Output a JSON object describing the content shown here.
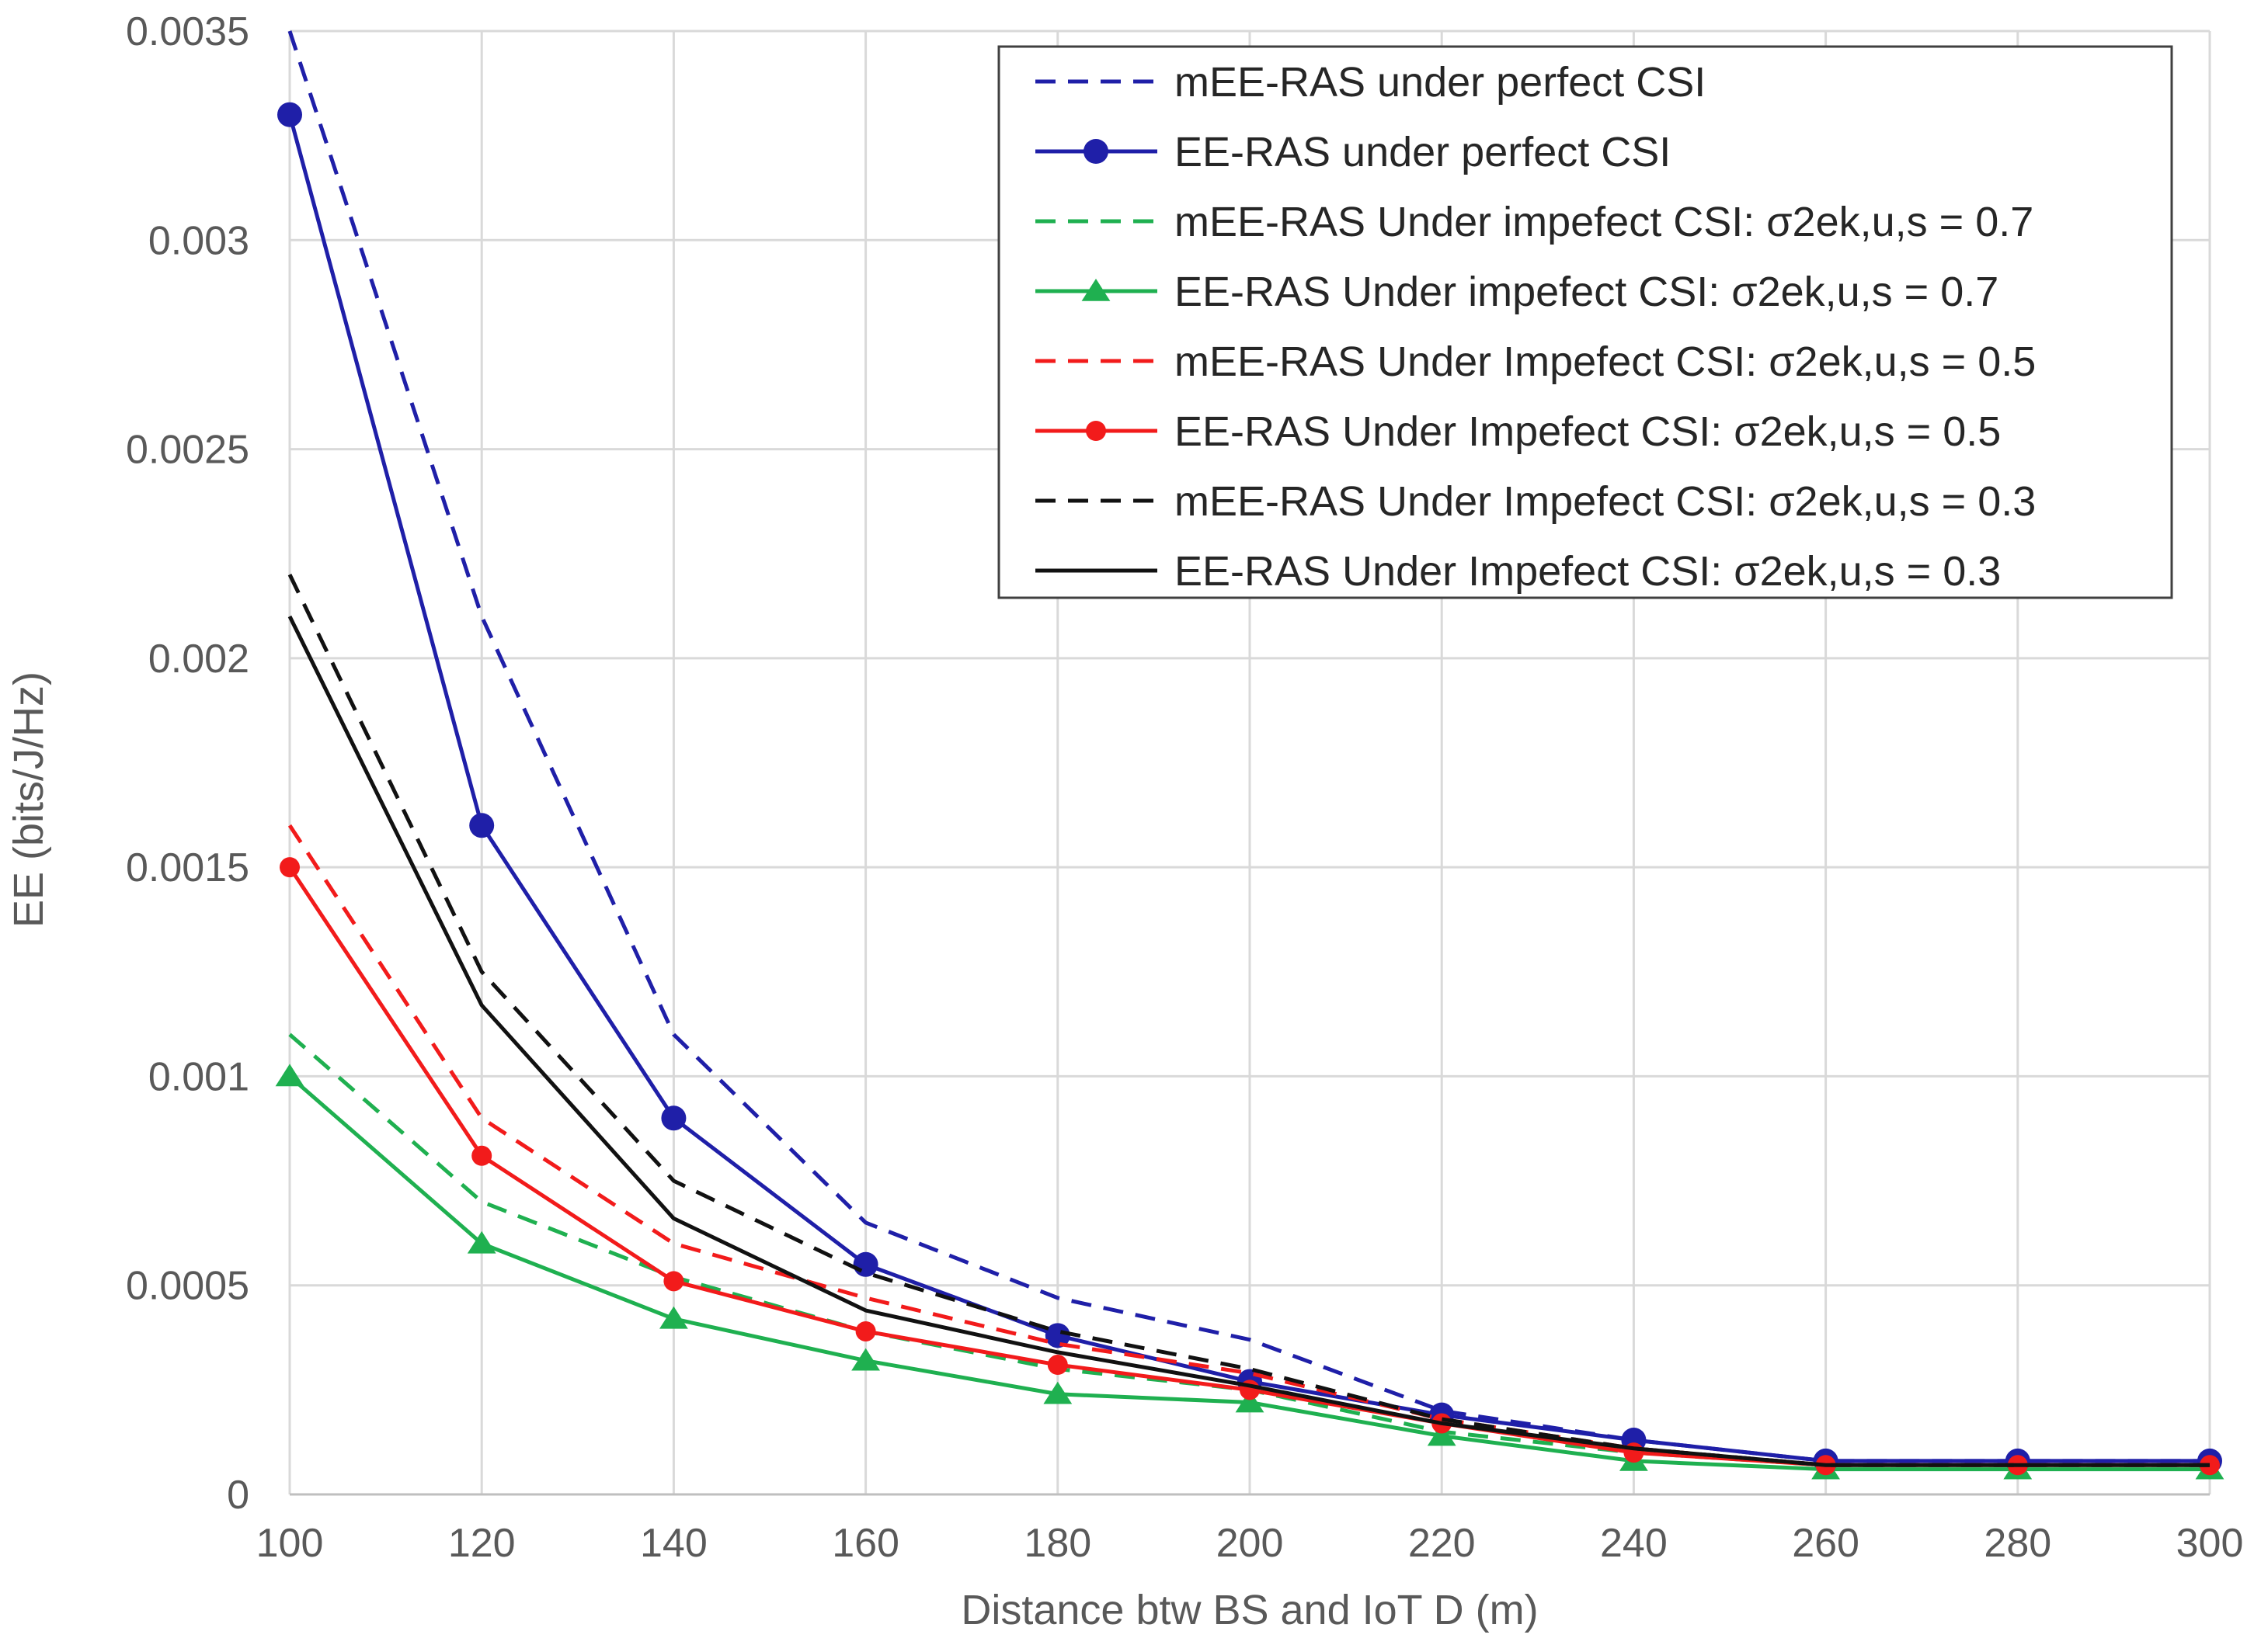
{
  "chart_data": {
    "type": "line",
    "title": "",
    "xlabel": "Distance btw BS and IoT D (m)",
    "ylabel": "EE (bits/J/Hz)",
    "x": [
      100,
      120,
      140,
      160,
      180,
      200,
      220,
      240,
      260,
      280,
      300
    ],
    "xlim": [
      100,
      300
    ],
    "ylim": [
      0,
      0.0035
    ],
    "x_ticks": [
      "100",
      "120",
      "140",
      "160",
      "180",
      "200",
      "220",
      "240",
      "260",
      "280",
      "300"
    ],
    "y_ticks": [
      "0",
      "0.0005",
      "0.001",
      "0.0015",
      "0.002",
      "0.0025",
      "0.003",
      "0.0035"
    ],
    "y_tick_values": [
      0,
      0.0005,
      0.001,
      0.0015,
      0.002,
      0.0025,
      0.003,
      0.0035
    ],
    "grid": true,
    "legend_position": "top-right",
    "series": [
      {
        "name": "mEE-RAS under perfect CSI",
        "color": "#1f1fa8",
        "dash": true,
        "marker": "none",
        "values": [
          0.0035,
          0.0021,
          0.0011,
          0.00065,
          0.00047,
          0.00037,
          0.0002,
          0.00013,
          8e-05,
          8e-05,
          8e-05
        ]
      },
      {
        "name": "EE-RAS under perfect CSI",
        "color": "#1f1fa8",
        "dash": false,
        "marker": "circle",
        "values": [
          0.0033,
          0.0016,
          0.0009,
          0.00055,
          0.00038,
          0.00027,
          0.00019,
          0.00013,
          8e-05,
          8e-05,
          8e-05
        ]
      },
      {
        "name": "mEE-RAS Under impefect CSI: σ2ek,u,s = 0.7",
        "color": "#1fb050",
        "dash": true,
        "marker": "none",
        "values": [
          0.0011,
          0.0007,
          0.00052,
          0.00039,
          0.0003,
          0.00025,
          0.00015,
          0.0001,
          7e-05,
          7e-05,
          7e-05
        ]
      },
      {
        "name": "EE-RAS Under impefect CSI: σ2ek,u,s = 0.7",
        "color": "#1fb050",
        "dash": false,
        "marker": "triangle",
        "values": [
          0.001,
          0.0006,
          0.00042,
          0.00032,
          0.00024,
          0.00022,
          0.00014,
          8e-05,
          6e-05,
          6e-05,
          6e-05
        ]
      },
      {
        "name": "mEE-RAS Under Impefect CSI: σ2ek,u,s = 0.5",
        "color": "#f21b1b",
        "dash": true,
        "marker": "none",
        "values": [
          0.0016,
          0.0009,
          0.0006,
          0.00047,
          0.00036,
          0.00029,
          0.00018,
          0.00011,
          7e-05,
          7e-05,
          7e-05
        ]
      },
      {
        "name": "EE-RAS Under Impefect CSI: σ2ek,u,s = 0.5",
        "color": "#f21b1b",
        "dash": false,
        "marker": "circle-small",
        "values": [
          0.0015,
          0.00081,
          0.00051,
          0.00039,
          0.00031,
          0.00025,
          0.00017,
          0.0001,
          7e-05,
          7e-05,
          7e-05
        ]
      },
      {
        "name": "mEE-RAS Under Impefect CSI: σ2ek,u,s = 0.3",
        "color": "#111111",
        "dash": true,
        "marker": "none",
        "values": [
          0.0022,
          0.00125,
          0.00075,
          0.00053,
          0.00039,
          0.0003,
          0.00018,
          0.00011,
          7e-05,
          7e-05,
          7e-05
        ]
      },
      {
        "name": "EE-RAS Under Impefect CSI: σ2ek,u,s = 0.3",
        "color": "#111111",
        "dash": false,
        "marker": "none",
        "values": [
          0.0021,
          0.00117,
          0.00066,
          0.00044,
          0.00034,
          0.00026,
          0.00017,
          0.00011,
          7e-05,
          7e-05,
          7e-05
        ]
      }
    ]
  }
}
